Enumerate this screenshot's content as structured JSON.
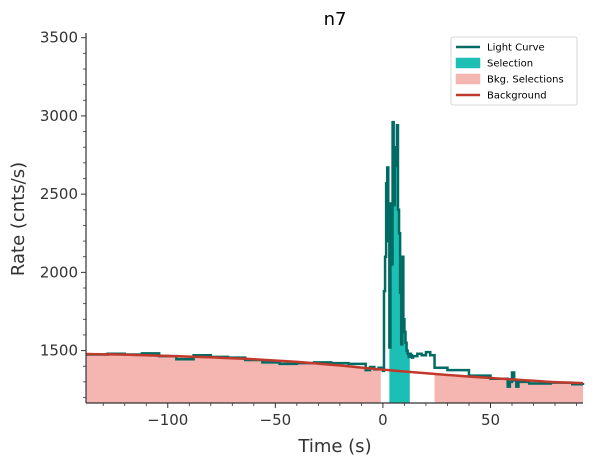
{
  "chart_data": {
    "type": "line",
    "title": "n7",
    "xlabel": "Time (s)",
    "ylabel": "Rate (cnts/s)",
    "xlim": [
      -138,
      93
    ],
    "ylim": [
      1165,
      3530
    ],
    "xticks": [
      -100,
      -50,
      0,
      50
    ],
    "xtick_labels": [
      "−100",
      "−50",
      "0",
      "50"
    ],
    "yticks": [
      1500,
      2000,
      2500,
      3000,
      3500
    ],
    "ytick_labels": [
      "1500",
      "2000",
      "2500",
      "3000",
      "3500"
    ],
    "grid": false,
    "legend_position": "top-right",
    "legend": [
      {
        "label": "Light Curve",
        "kind": "line",
        "color": "#006b63"
      },
      {
        "label": "Selection",
        "kind": "patch",
        "color": "#1cbfb3"
      },
      {
        "label": "Bkg. Selections",
        "kind": "patch",
        "color": "#f5b5b0"
      },
      {
        "label": "Background",
        "kind": "line",
        "color": "#c0392b"
      }
    ],
    "background_intervals": [
      [
        -138,
        -1
      ],
      [
        24,
        93
      ]
    ],
    "selection_interval": [
      3,
      12.5
    ],
    "background_model": {
      "x": [
        -138,
        -120,
        -100,
        -80,
        -60,
        -40,
        -20,
        0,
        20,
        40,
        60,
        80,
        93
      ],
      "y": [
        1478,
        1474,
        1466,
        1457,
        1445,
        1428,
        1405,
        1378,
        1355,
        1334,
        1316,
        1298,
        1292
      ]
    },
    "light_curve": {
      "x": [
        -138,
        -128,
        -120,
        -112,
        -104,
        -96,
        -88,
        -80,
        -72,
        -64,
        -56,
        -48,
        -40,
        -32,
        -24,
        -16,
        -8,
        -6,
        -4,
        -2,
        0,
        0.5,
        1,
        1.5,
        2,
        2.5,
        3,
        3.5,
        4,
        4.5,
        5,
        5.5,
        6,
        6.5,
        7,
        7.5,
        8,
        8.5,
        9,
        9.5,
        10,
        10.5,
        11,
        11.5,
        12,
        12.5,
        13,
        13.5,
        14,
        16,
        18,
        20,
        22,
        24,
        30,
        40,
        50,
        58,
        59,
        60,
        61,
        62,
        63,
        68,
        78,
        88,
        93
      ],
      "y": [
        1475,
        1480,
        1475,
        1482,
        1465,
        1445,
        1470,
        1460,
        1455,
        1440,
        1425,
        1415,
        1420,
        1425,
        1420,
        1415,
        1375,
        1395,
        1380,
        1390,
        1370,
        1880,
        2100,
        2570,
        2670,
        2200,
        1520,
        2440,
        2050,
        2960,
        2430,
        2680,
        2800,
        2940,
        2400,
        2250,
        1870,
        1540,
        2100,
        1700,
        1620,
        1550,
        1500,
        1480,
        1460,
        1480,
        1470,
        1455,
        1465,
        1480,
        1470,
        1490,
        1470,
        1390,
        1375,
        1340,
        1320,
        1270,
        1300,
        1360,
        1310,
        1270,
        1300,
        1290,
        1295,
        1285,
        1280
      ]
    }
  }
}
